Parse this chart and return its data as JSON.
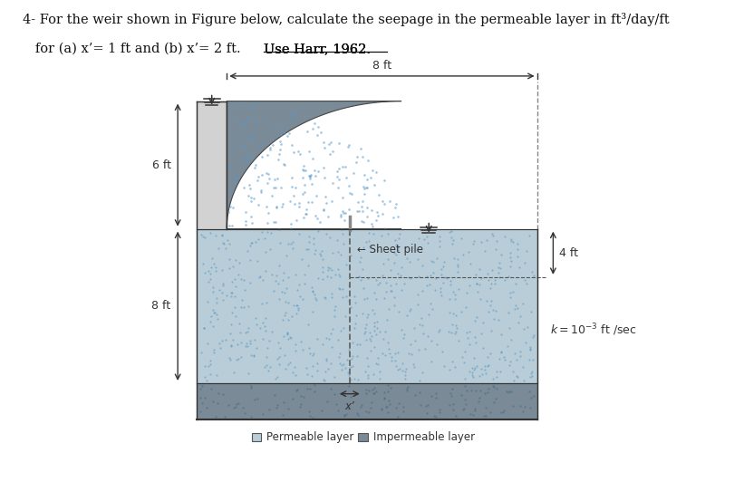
{
  "title_line1": "4- For the weir shown in Figure below, calculate the seepage in the permeable layer in ft³/day/ft",
  "title_line2": "   for (a) x’= 1 ft and (b) x’= 2 ft. Use Harr, 1962.",
  "color_permeable": "#b8cdd8",
  "color_impermeable": "#7a8a96",
  "color_upstream_block": "#d2d2d2",
  "color_weir_fill": "#7a8a96",
  "bg_color": "#ffffff",
  "legend_permeable_color": "#b8cdd8",
  "legend_impermeable_color": "#7a8a96",
  "sheet_pile_label": "← Sheet pile",
  "label_6ft": "6 ft",
  "label_8ft_left": "8 ft",
  "label_4ft": "4 ft",
  "label_8ft_top": "8 ft",
  "label_xprime": "x’",
  "legend_perm_text": "Permeable layer",
  "legend_imp_text": "Impermeable layer"
}
